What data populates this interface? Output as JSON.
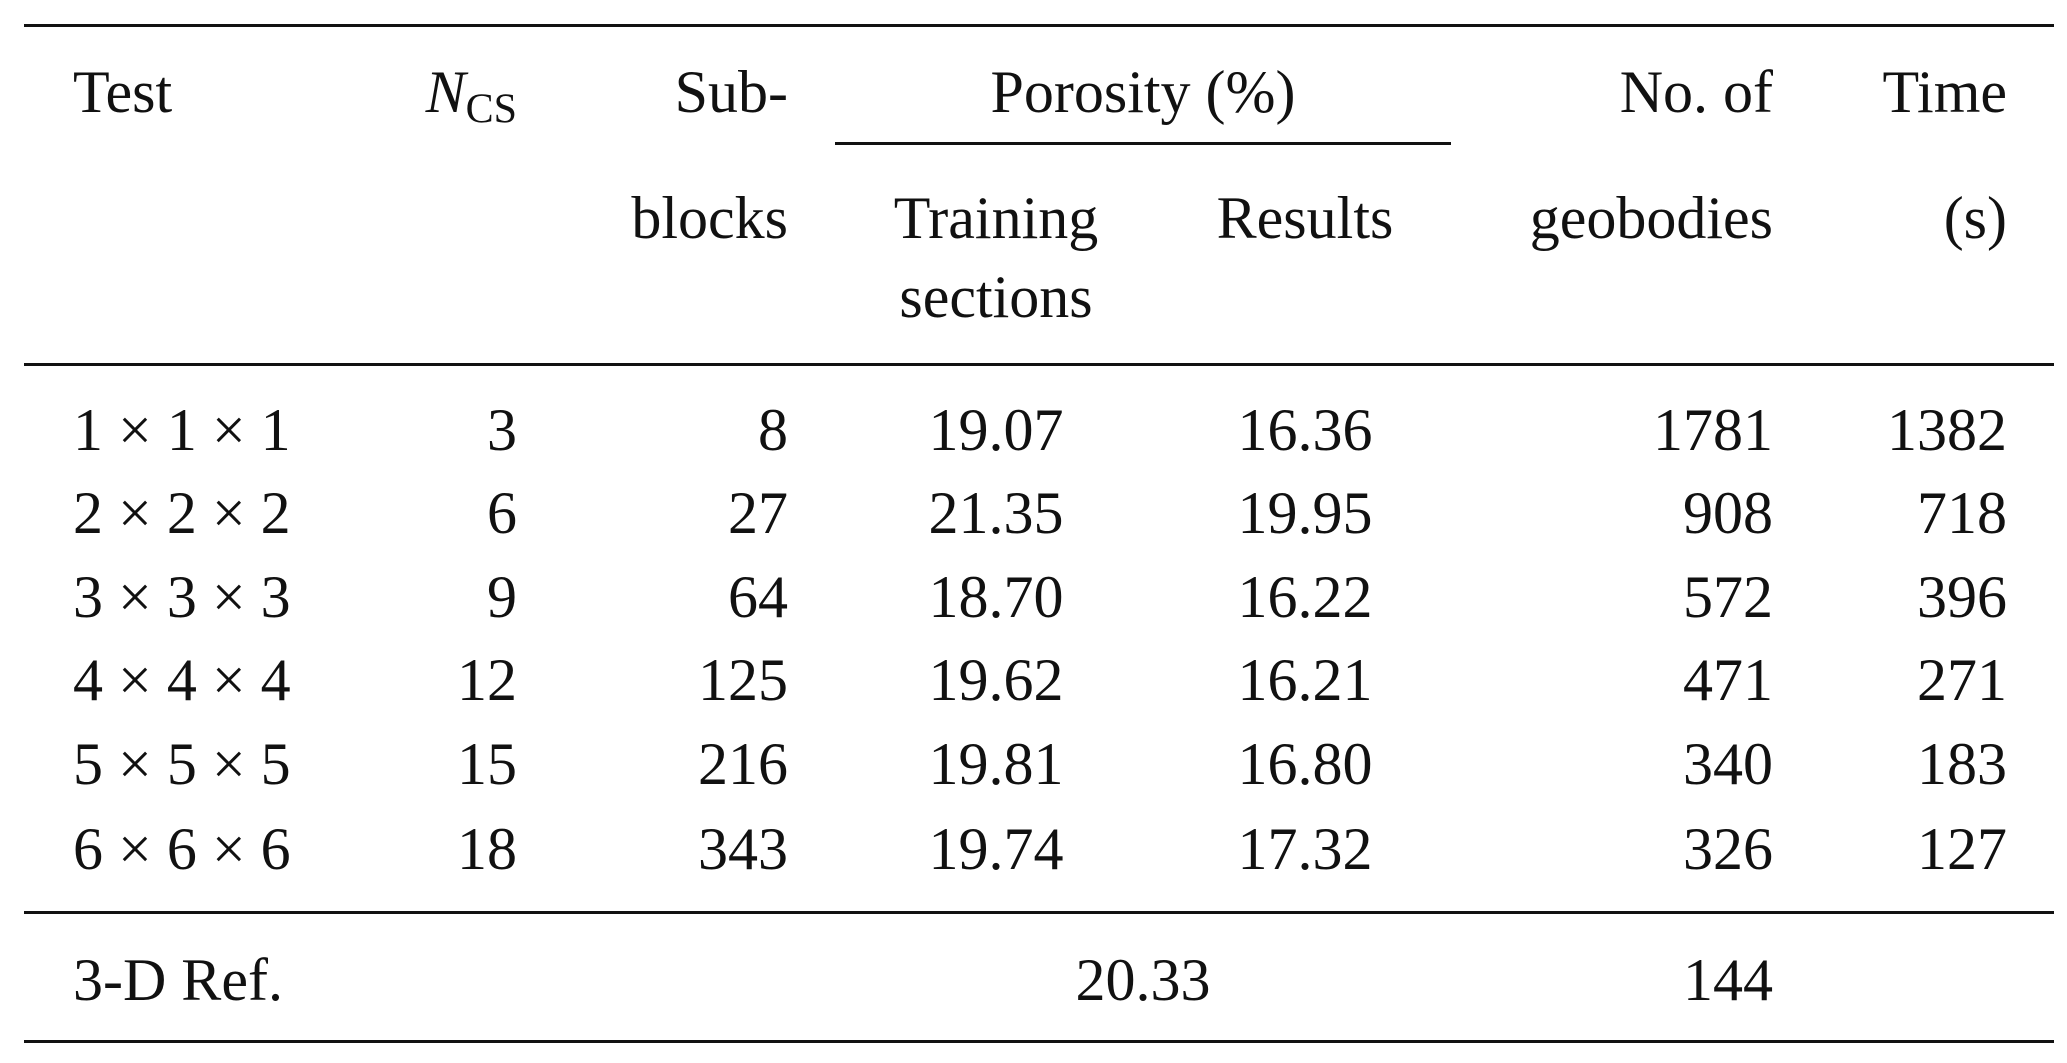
{
  "table": {
    "headers": {
      "test": "Test",
      "ncs_main": "N",
      "ncs_sub": "CS",
      "subblocks_line1": "Sub-",
      "subblocks_line2": "blocks",
      "porosity_group": "Porosity (%)",
      "training_line1": "Training",
      "training_line2": "sections",
      "results": "Results",
      "geobodies_line1": "No. of",
      "geobodies_line2": "geobodies",
      "time_line1": "Time",
      "time_line2": "(s)"
    },
    "rows": [
      {
        "test": "1 × 1 × 1",
        "ncs": "3",
        "subblocks": "8",
        "training": "19.07",
        "results": "16.36",
        "geobodies": "1781",
        "time": "1382"
      },
      {
        "test": "2 × 2 × 2",
        "ncs": "6",
        "subblocks": "27",
        "training": "21.35",
        "results": "19.95",
        "geobodies": "908",
        "time": "718"
      },
      {
        "test": "3 × 3 × 3",
        "ncs": "9",
        "subblocks": "64",
        "training": "18.70",
        "results": "16.22",
        "geobodies": "572",
        "time": "396"
      },
      {
        "test": "4 × 4 × 4",
        "ncs": "12",
        "subblocks": "125",
        "training": "19.62",
        "results": "16.21",
        "geobodies": "471",
        "time": "271"
      },
      {
        "test": "5 × 5 × 5",
        "ncs": "15",
        "subblocks": "216",
        "training": "19.81",
        "results": "16.80",
        "geobodies": "340",
        "time": "183"
      },
      {
        "test": "6 × 6 × 6",
        "ncs": "18",
        "subblocks": "343",
        "training": "19.74",
        "results": "17.32",
        "geobodies": "326",
        "time": "127"
      }
    ],
    "reference": {
      "label": "3-D Ref.",
      "porosity": "20.33",
      "geobodies": "144"
    }
  }
}
